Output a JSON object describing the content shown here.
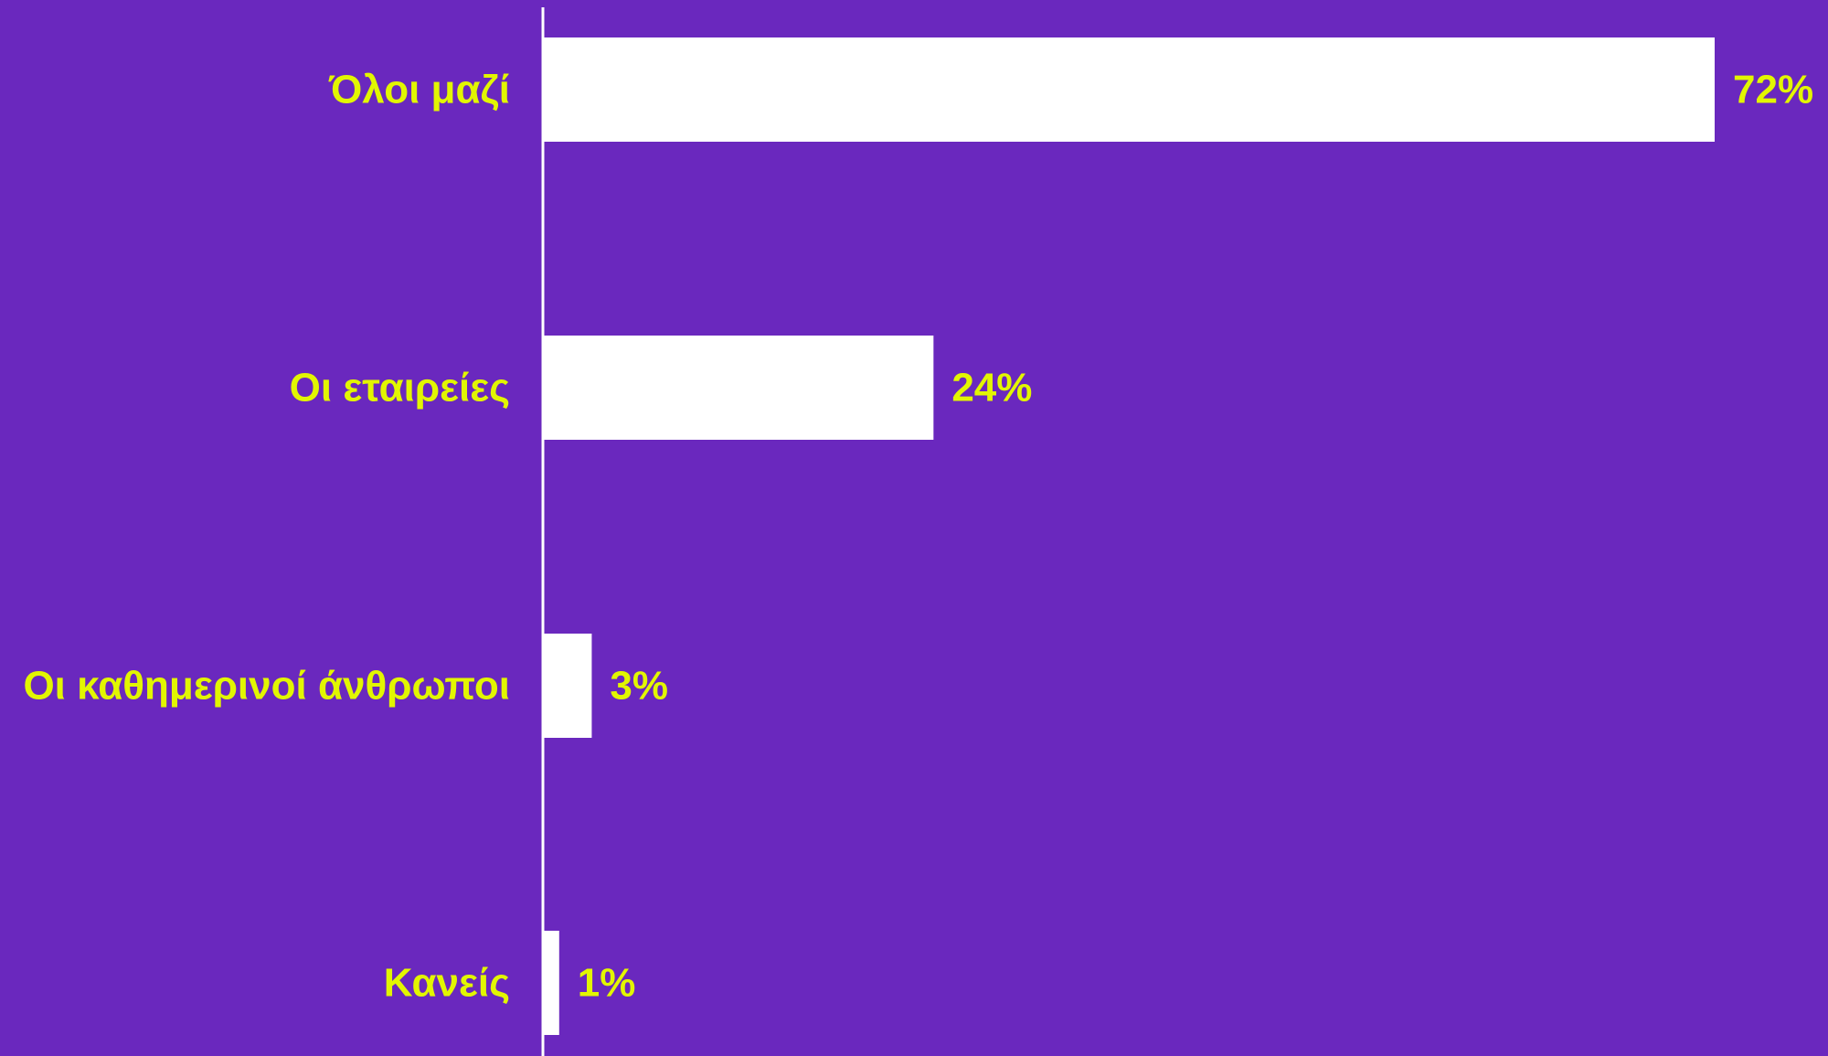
{
  "colors": {
    "background": "#6a28be",
    "bar": "#ffffff",
    "axis": "#ffffff",
    "label": "#e2f600"
  },
  "chart_data": {
    "type": "bar",
    "orientation": "horizontal",
    "categories": [
      "Όλοι μαζί",
      "Οι εταιρείες",
      "Οι καθημερινοί άνθρωποι",
      "Κανείς"
    ],
    "values": [
      72,
      24,
      3,
      1
    ],
    "value_labels": [
      "72%",
      "24%",
      "3%",
      "1%"
    ],
    "unit": "%",
    "xlim": [
      0,
      72
    ],
    "grid": false,
    "legend": "none"
  }
}
